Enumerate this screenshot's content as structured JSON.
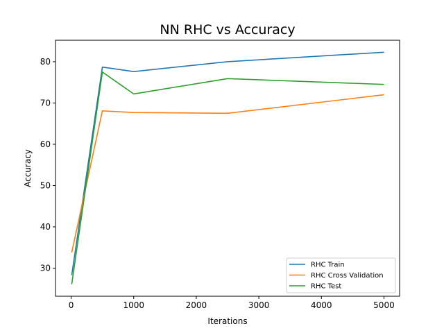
{
  "chart_data": {
    "type": "line",
    "title": "NN RHC vs Accuracy",
    "xlabel": "Iterations",
    "ylabel": "Accuracy",
    "xlim": [
      -250,
      5250
    ],
    "ylim": [
      23.2,
      85.2
    ],
    "xticks": [
      0,
      1000,
      2000,
      3000,
      4000,
      5000
    ],
    "yticks": [
      30,
      40,
      50,
      60,
      70,
      80
    ],
    "grid": false,
    "legend_position": "lower-right",
    "series": [
      {
        "name": "RHC Train",
        "color": "#1f77b4",
        "x": [
          10,
          500,
          1000,
          2500,
          5000
        ],
        "y": [
          28.3,
          78.7,
          77.6,
          80.0,
          82.3
        ]
      },
      {
        "name": "RHC Cross Validation",
        "color": "#ff7f0e",
        "x": [
          10,
          500,
          1000,
          2500,
          5000
        ],
        "y": [
          33.8,
          68.1,
          67.7,
          67.5,
          72.0
        ]
      },
      {
        "name": "RHC Test",
        "color": "#2ca02c",
        "x": [
          10,
          500,
          1000,
          2500,
          5000
        ],
        "y": [
          26.1,
          77.5,
          72.2,
          75.9,
          74.5
        ]
      }
    ]
  }
}
